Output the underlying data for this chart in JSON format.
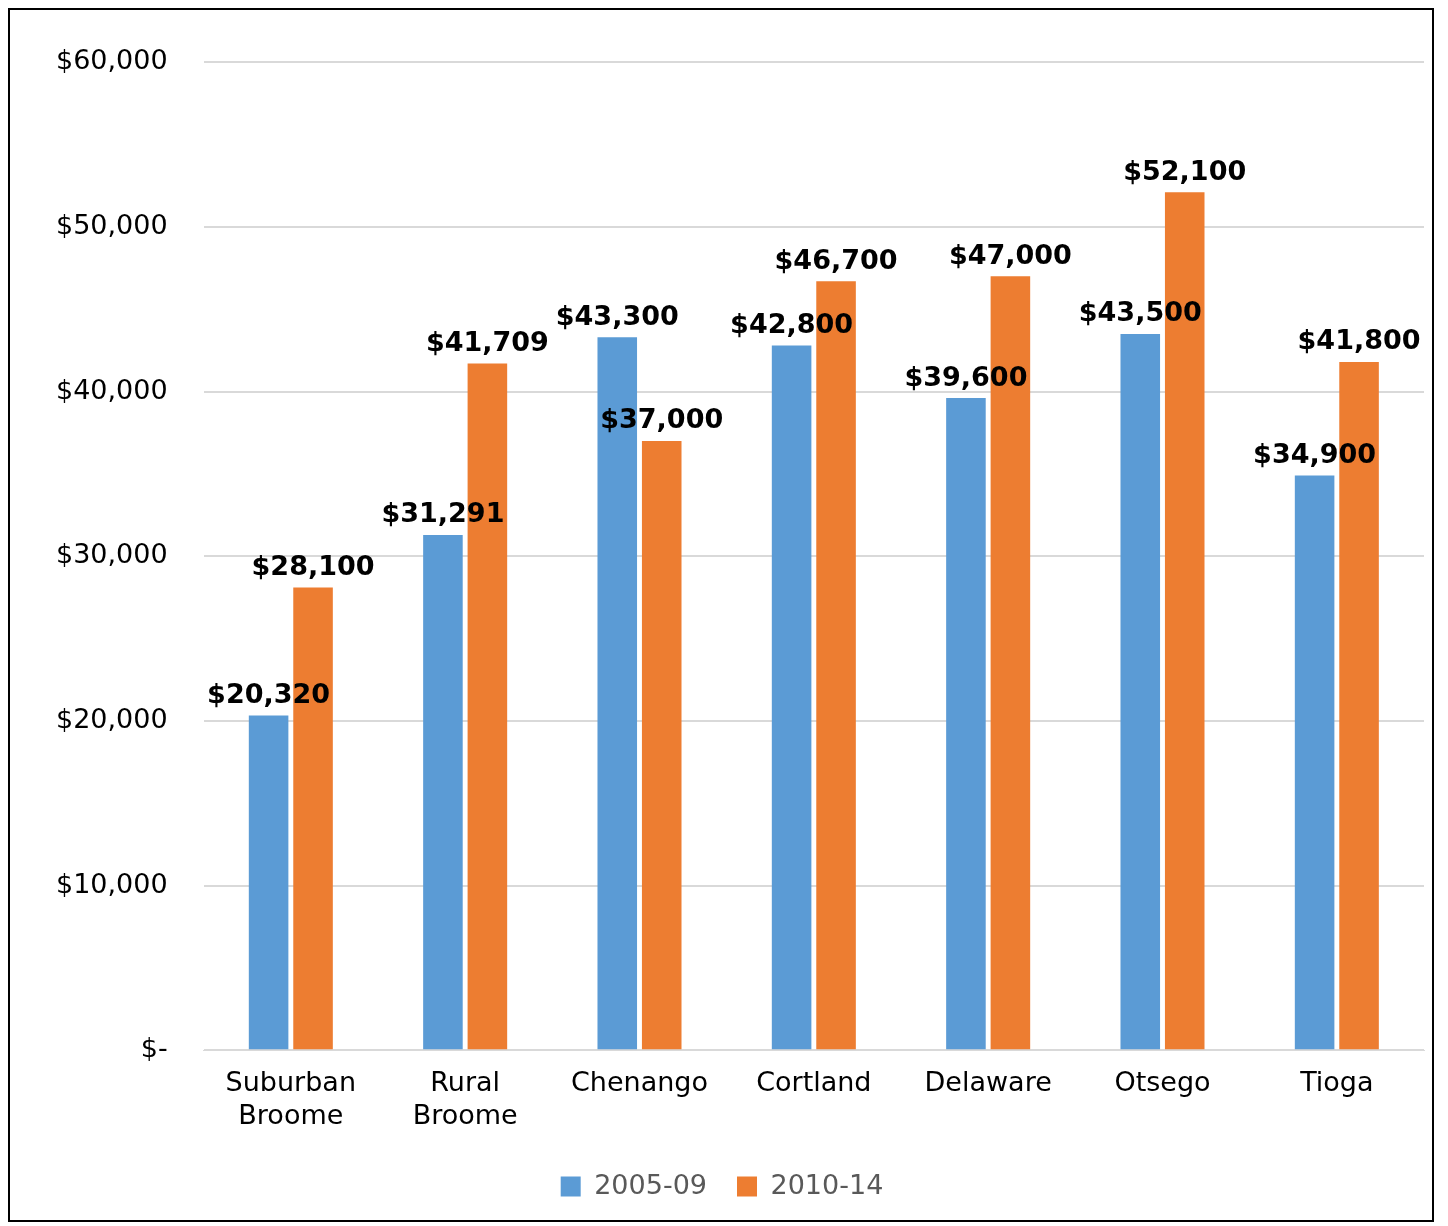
{
  "chart_data": {
    "type": "bar",
    "categories": [
      "Suburban Broome",
      "Rural Broome",
      "Chenango",
      "Cortland",
      "Delaware",
      "Otsego",
      "Tioga"
    ],
    "series": [
      {
        "name": "2005-09",
        "color": "#5b9bd5",
        "values": [
          20320,
          31291,
          43300,
          42800,
          39600,
          43500,
          34900
        ],
        "value_labels": [
          "$20,320",
          "$31,291",
          "$43,300",
          "$42,800",
          "$39,600",
          "$43,500",
          "$34,900"
        ]
      },
      {
        "name": "2010-14",
        "color": "#ed7d31",
        "values": [
          28100,
          41709,
          37000,
          46700,
          47000,
          52100,
          41800
        ],
        "value_labels": [
          "$28,100",
          "$41,709",
          "$37,000",
          "$46,700",
          "$47,000",
          "$52,100",
          "$41,800"
        ]
      }
    ],
    "ylim": [
      0,
      60000
    ],
    "yticks": [
      {
        "value": 0,
        "label": "$-"
      },
      {
        "value": 10000,
        "label": "$10,000"
      },
      {
        "value": 20000,
        "label": "$20,000"
      },
      {
        "value": 30000,
        "label": "$30,000"
      },
      {
        "value": 40000,
        "label": "$40,000"
      },
      {
        "value": 50000,
        "label": "$50,000"
      },
      {
        "value": 60000,
        "label": "$60,000"
      }
    ],
    "grid": "y",
    "legend": "bottom"
  }
}
